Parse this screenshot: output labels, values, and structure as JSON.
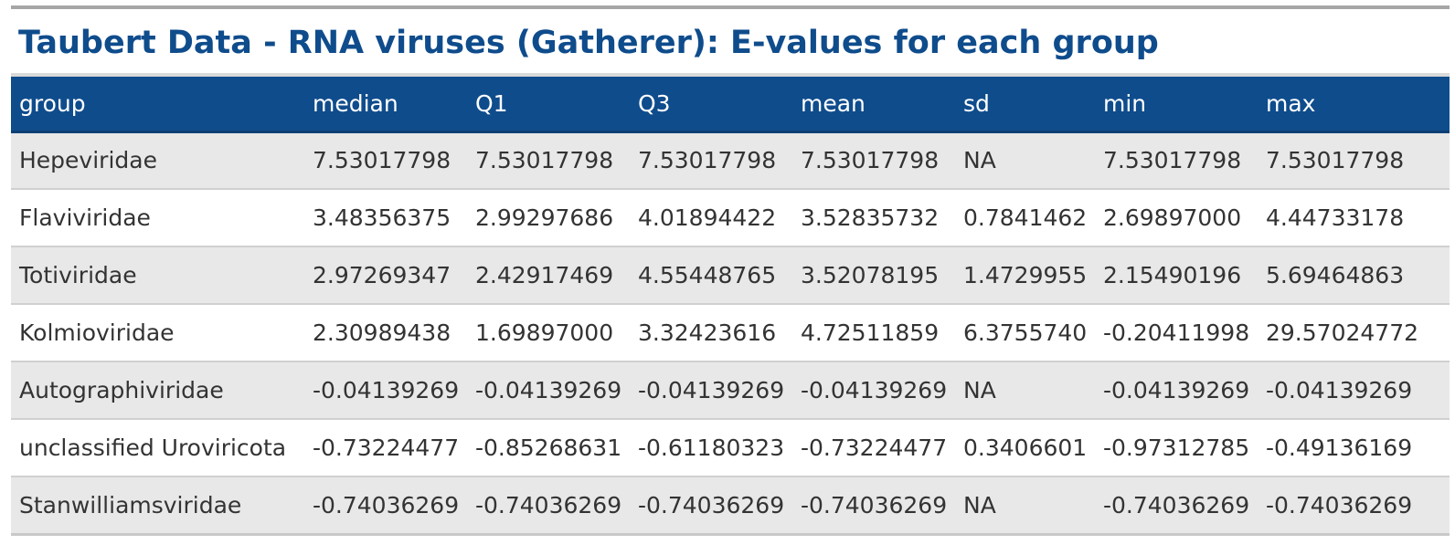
{
  "title": "Taubert Data - RNA viruses (Gatherer): E-values for each group",
  "table": {
    "headers": [
      "group",
      "median",
      "Q1",
      "Q3",
      "mean",
      "sd",
      "min",
      "max"
    ],
    "rows": [
      [
        "Hepeviridae",
        "7.53017798",
        "7.53017798",
        "7.53017798",
        "7.53017798",
        "NA",
        "7.53017798",
        "7.53017798"
      ],
      [
        "Flaviviridae",
        "3.48356375",
        "2.99297686",
        "4.01894422",
        "3.52835732",
        "0.7841462",
        "2.69897000",
        "4.44733178"
      ],
      [
        "Totiviridae",
        "2.97269347",
        "2.42917469",
        "4.55448765",
        "3.52078195",
        "1.4729955",
        "2.15490196",
        "5.69464863"
      ],
      [
        "Kolmioviridae",
        "2.30989438",
        "1.69897000",
        "3.32423616",
        "4.72511859",
        "6.3755740",
        "-0.20411998",
        "29.57024772"
      ],
      [
        "Autographiviridae",
        "-0.04139269",
        "-0.04139269",
        "-0.04139269",
        "-0.04139269",
        "NA",
        "-0.04139269",
        "-0.04139269"
      ],
      [
        "unclassified Uroviricota",
        "-0.73224477",
        "-0.85268631",
        "-0.61180323",
        "-0.73224477",
        "0.3406601",
        "-0.97312785",
        "-0.49136169"
      ],
      [
        "Stanwilliamsviridae",
        "-0.74036269",
        "-0.74036269",
        "-0.74036269",
        "-0.74036269",
        "NA",
        "-0.74036269",
        "-0.74036269"
      ]
    ]
  },
  "colors": {
    "header_bg": "#0f4c8c",
    "title_text": "#0f4c8c",
    "row_alt_bg": "#e8e8e8"
  }
}
